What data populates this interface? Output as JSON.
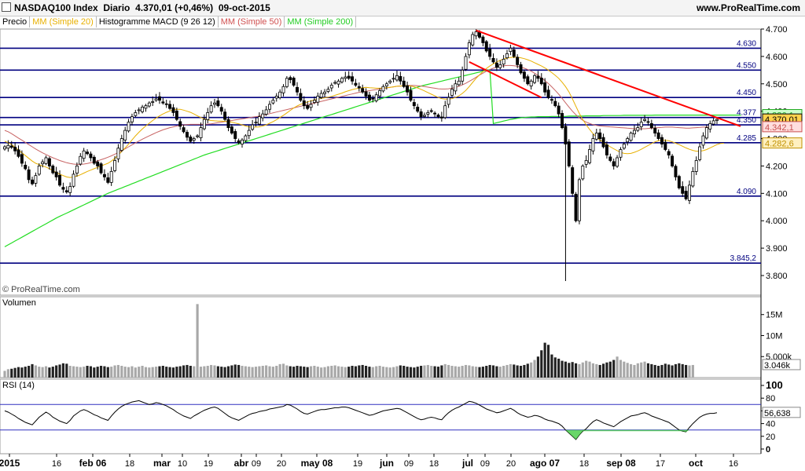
{
  "header": {
    "title": "NASDAQ100 Index",
    "period": "Diario",
    "last": "4.370,01 (+0,46%)",
    "date": "09-oct-2015",
    "site": "www.ProRealTime.com"
  },
  "legend": [
    {
      "label": "Precio",
      "color": "#000000"
    },
    {
      "label": "MM (Simple 20)",
      "color": "#e8b000"
    },
    {
      "label": "Histogramme MACD (9 26 12)",
      "color": "#000000"
    },
    {
      "label": "MM (Simple 50)",
      "color": "#d05050"
    },
    {
      "label": "MM (Simple 200)",
      "color": "#22cc22"
    }
  ],
  "watermark": "© ProRealTime.com",
  "volume_label": "Volumen",
  "rsi_label": "RSI (14)",
  "colors": {
    "up": "#ffffff",
    "down": "#000000",
    "ma20": "#e8b000",
    "ma50": "#c86464",
    "ma200": "#22dd22",
    "trend": "#ff0000",
    "level": "#000080"
  },
  "chart_data": {
    "type": "candlestick",
    "title": "NASDAQ100 Index",
    "ylim": [
      3760,
      4720
    ],
    "y_ticks": [
      "4.700",
      "4.600",
      "4.500",
      "4.400",
      "4.300",
      "4.200",
      "4.100",
      "4.000",
      "3.900",
      "3.800"
    ],
    "x_ticks": [
      "2015",
      "16",
      "feb 06",
      "18",
      "mar",
      "10",
      "19",
      "abr",
      "09",
      "20",
      "may 08",
      "19",
      "jun",
      "09",
      "18",
      "jul",
      "09",
      "20",
      "ago 07",
      "18",
      "sep 08",
      "17",
      "oct",
      "16"
    ],
    "levels": [
      {
        "label": "4.630",
        "value": 4630
      },
      {
        "label": "4.550",
        "value": 4550
      },
      {
        "label": "4.450",
        "value": 4450
      },
      {
        "label": "4.377",
        "value": 4377
      },
      {
        "label": "4.350",
        "value": 4350
      },
      {
        "label": "4.285",
        "value": 4285
      },
      {
        "label": "4.090",
        "value": 4090
      },
      {
        "label": "3.845,2",
        "value": 3845.2
      }
    ],
    "price_tags": [
      {
        "label": "4.386,1",
        "value": 4386.1,
        "bg": "#ccffcc",
        "fg": "#22aa22"
      },
      {
        "label": "4.370,01",
        "value": 4370.01,
        "bg": "#ffd24d",
        "fg": "#000000"
      },
      {
        "label": "4.342,1",
        "value": 4342.1,
        "bg": "#ffdede",
        "fg": "#c85050"
      },
      {
        "label": "4.282,6",
        "value": 4282.6,
        "bg": "#fff0c0",
        "fg": "#c09000"
      }
    ],
    "closes": [
      4270,
      4275,
      4268,
      4255,
      4235,
      4210,
      4190,
      4150,
      4135,
      4165,
      4200,
      4215,
      4230,
      4200,
      4175,
      4160,
      4130,
      4115,
      4105,
      4125,
      4170,
      4200,
      4235,
      4255,
      4245,
      4230,
      4210,
      4200,
      4175,
      4160,
      4140,
      4180,
      4220,
      4265,
      4300,
      4330,
      4360,
      4380,
      4395,
      4405,
      4415,
      4420,
      4430,
      4435,
      4445,
      4440,
      4430,
      4425,
      4410,
      4395,
      4370,
      4345,
      4325,
      4305,
      4290,
      4300,
      4310,
      4340,
      4370,
      4395,
      4420,
      4430,
      4420,
      4400,
      4370,
      4340,
      4320,
      4300,
      4285,
      4295,
      4310,
      4330,
      4350,
      4360,
      4380,
      4390,
      4405,
      4425,
      4440,
      4455,
      4470,
      4490,
      4520,
      4515,
      4495,
      4470,
      4440,
      4420,
      4410,
      4425,
      4440,
      4455,
      4465,
      4470,
      4480,
      4495,
      4505,
      4510,
      4520,
      4525,
      4520,
      4510,
      4495,
      4485,
      4470,
      4455,
      4440,
      4445,
      4460,
      4475,
      4490,
      4500,
      4510,
      4520,
      4530,
      4510,
      4490,
      4470,
      4440,
      4420,
      4400,
      4380,
      4385,
      4395,
      4400,
      4390,
      4380,
      4375,
      4420,
      4450,
      4480,
      4500,
      4510,
      4550,
      4600,
      4650,
      4680,
      4690,
      4670,
      4650,
      4620,
      4600,
      4580,
      4560,
      4570,
      4590,
      4610,
      4630,
      4600,
      4570,
      4540,
      4520,
      4500,
      4510,
      4530,
      4520,
      4500,
      4470,
      4450,
      4440,
      4420,
      4390,
      4340,
      4280,
      4200,
      4100,
      4000,
      4150,
      4200,
      4220,
      4260,
      4300,
      4320,
      4300,
      4270,
      4240,
      4220,
      4200,
      4230,
      4260,
      4280,
      4300,
      4320,
      4330,
      4340,
      4360,
      4370,
      4360,
      4340,
      4320,
      4300,
      4280,
      4260,
      4240,
      4200,
      4160,
      4120,
      4100,
      4080,
      4130,
      4180,
      4220,
      4270,
      4310,
      4340,
      4355,
      4365,
      4370
    ],
    "ma20": [
      4290,
      4285,
      4278,
      4268,
      4258,
      4248,
      4238,
      4228,
      4218,
      4210,
      4205,
      4200,
      4196,
      4190,
      4183,
      4176,
      4170,
      4165,
      4160,
      4158,
      4160,
      4163,
      4168,
      4174,
      4180,
      4185,
      4190,
      4195,
      4200,
      4205,
      4210,
      4218,
      4228,
      4240,
      4253,
      4266,
      4280,
      4295,
      4310,
      4323,
      4335,
      4346,
      4356,
      4366,
      4375,
      4383,
      4390,
      4396,
      4401,
      4405,
      4407,
      4407,
      4404,
      4400,
      4396,
      4390,
      4383,
      4377,
      4372,
      4368,
      4366,
      4365,
      4364,
      4364,
      4363,
      4362,
      4360,
      4357,
      4354,
      4350,
      4346,
      4343,
      4342,
      4342,
      4343,
      4346,
      4350,
      4356,
      4362,
      4369,
      4377,
      4385,
      4394,
      4403,
      4412,
      4419,
      4425,
      4430,
      4434,
      4438,
      4441,
      4444,
      4447,
      4449,
      4451,
      4454,
      4458,
      4462,
      4466,
      4471,
      4475,
      4479,
      4482,
      4484,
      4486,
      4487,
      4486,
      4485,
      4484,
      4484,
      4485,
      4486,
      4487,
      4489,
      4491,
      4492,
      4493,
      4493,
      4492,
      4489,
      4485,
      4480,
      4474,
      4468,
      4462,
      4456,
      4450,
      4446,
      4444,
      4444,
      4446,
      4450,
      4456,
      4465,
      4476,
      4490,
      4505,
      4520,
      4533,
      4545,
      4556,
      4565,
      4573,
      4580,
      4586,
      4590,
      4594,
      4596,
      4597,
      4597,
      4595,
      4592,
      4588,
      4583,
      4577,
      4571,
      4565,
      4558,
      4550,
      4541,
      4531,
      4520,
      4506,
      4490,
      4470,
      4445,
      4418,
      4392,
      4370,
      4350,
      4333,
      4318,
      4305,
      4295,
      4286,
      4278,
      4270,
      4263,
      4256,
      4250,
      4246,
      4245,
      4246,
      4250,
      4255,
      4261,
      4268,
      4275,
      4282,
      4288,
      4292,
      4294,
      4294,
      4292,
      4288,
      4283,
      4278,
      4272,
      4266,
      4261,
      4257,
      4254,
      4254,
      4256,
      4260,
      4266,
      4272,
      4278,
      4282,
      4283
    ],
    "ma50": [
      4330,
      4325,
      4318,
      4310,
      4302,
      4294,
      4286,
      4278,
      4270,
      4262,
      4255,
      4248,
      4242,
      4236,
      4230,
      4225,
      4220,
      4216,
      4212,
      4209,
      4207,
      4206,
      4206,
      4207,
      4209,
      4212,
      4215,
      4219,
      4223,
      4227,
      4232,
      4237,
      4243,
      4249,
      4256,
      4263,
      4270,
      4277,
      4284,
      4291,
      4298,
      4304,
      4310,
      4316,
      4322,
      4327,
      4332,
      4336,
      4340,
      4343,
      4346,
      4348,
      4350,
      4351,
      4352,
      4352,
      4352,
      4352,
      4352,
      4353,
      4354,
      4356,
      4358,
      4360,
      4362,
      4364,
      4366,
      4368,
      4370,
      4372,
      4374,
      4376,
      4378,
      4380,
      4382,
      4385,
      4388,
      4391,
      4394,
      4397,
      4400,
      4403,
      4406,
      4409,
      4412,
      4415,
      4418,
      4421,
      4424,
      4427,
      4430,
      4433,
      4436,
      4439,
      4442,
      4445,
      4448,
      4451,
      4454,
      4457,
      4460,
      4463,
      4466,
      4469,
      4471,
      4473,
      4475,
      4477,
      4479,
      4481,
      4483,
      4485,
      4487,
      4489,
      4491,
      4492,
      4493,
      4494,
      4494,
      4494,
      4493,
      4492,
      4490,
      4488,
      4486,
      4484,
      4482,
      4481,
      4481,
      4482,
      4484,
      4487,
      4491,
      4496,
      4502,
      4509,
      4516,
      4524,
      4532,
      4539,
      4546,
      4552,
      4557,
      4561,
      4564,
      4566,
      4567,
      4567,
      4566,
      4564,
      4561,
      4557,
      4552,
      4546,
      4539,
      4531,
      4522,
      4512,
      4501,
      4489,
      4476,
      4462,
      4447,
      4431,
      4415,
      4400,
      4387,
      4376,
      4367,
      4360,
      4355,
      4351,
      4348,
      4346,
      4345,
      4344,
      4343,
      4342,
      4341,
      4340,
      4339,
      4338,
      4337,
      4336,
      4336,
      4336,
      4336,
      4337,
      4338,
      4339,
      4340,
      4341,
      4342,
      4342,
      4342,
      4341,
      4340,
      4339,
      4338,
      4338,
      4339,
      4340,
      4341,
      4342,
      4342,
      4342
    ],
    "ma200": [
      3905,
      3912,
      3919,
      3926,
      3933,
      3940,
      3947,
      3954,
      3961,
      3968,
      3975,
      3982,
      3989,
      3996,
      4003,
      4010,
      4016,
      4022,
      4028,
      4034,
      4040,
      4046,
      4052,
      4058,
      4064,
      4070,
      4076,
      4082,
      4088,
      4094,
      4100,
      4105,
      4110,
      4115,
      4120,
      4125,
      4130,
      4135,
      4140,
      4145,
      4150,
      4155,
      4160,
      4165,
      4170,
      4175,
      4180,
      4185,
      4190,
      4195,
      4200,
      4205,
      4210,
      4215,
      4220,
      4225,
      4230,
      4235,
      4240,
      4244,
      4248,
      4252,
      4256,
      4260,
      4264,
      4268,
      4272,
      4276,
      4280,
      4284,
      4288,
      4292,
      4296,
      4300,
      4304,
      4308,
      4312,
      4316,
      4320,
      4324,
      4328,
      4332,
      4336,
      4340,
      4344,
      4348,
      4352,
      4356,
      4360,
      4364,
      4368,
      4372,
      4376,
      4380,
      4384,
      4388,
      4392,
      4396,
      4400,
      4404,
      4408,
      4412,
      4416,
      4420,
      4424,
      4428,
      4432,
      4436,
      4440,
      4444,
      4448,
      4452,
      4456,
      4460,
      4464,
      4468,
      4472,
      4476,
      4480,
      4484,
      4488,
      4492,
      4495,
      4498,
      4501,
      4504,
      4507,
      4510,
      4513,
      4516,
      4519,
      4522,
      4525,
      4528,
      4531,
      4534,
      4537,
      4540,
      4543,
      4546,
      4549,
      4552,
      4355,
      4358,
      4361,
      4364,
      4367,
      4370,
      4372,
      4374,
      4376,
      4377,
      4378,
      4379,
      4379,
      4380,
      4380,
      4380,
      4380,
      4381,
      4381,
      4381,
      4381,
      4381,
      4382,
      4382,
      4382,
      4382,
      4382,
      4383,
      4383,
      4383,
      4383,
      4383,
      4384,
      4384,
      4384,
      4384,
      4384,
      4384,
      4385,
      4385,
      4385,
      4385,
      4385,
      4385,
      4385,
      4385,
      4385,
      4386,
      4386,
      4386,
      4386,
      4386,
      4386,
      4386,
      4386,
      4386,
      4386,
      4386,
      4386,
      4386,
      4386,
      4386,
      4386,
      4386,
      4386,
      4386,
      4386,
      4386,
      4386,
      4386,
      4386,
      4386,
      4386
    ],
    "volume_ticks": [
      "15M",
      "10M",
      "5.000k"
    ],
    "volume_last": "3.046k",
    "volume": [
      1.6,
      2.0,
      2.1,
      2.3,
      2.5,
      2.4,
      2.6,
      2.8,
      3.2,
      2.9,
      2.6,
      2.5,
      2.7,
      2.4,
      2.6,
      2.9,
      3.1,
      3.4,
      3.3,
      2.8,
      2.7,
      2.6,
      2.5,
      2.6,
      2.8,
      2.7,
      2.4,
      2.6,
      2.8,
      2.7,
      2.5,
      2.6,
      2.9,
      3.0,
      2.8,
      2.6,
      2.5,
      2.7,
      2.4,
      2.6,
      2.8,
      2.5,
      2.4,
      2.5,
      2.6,
      2.7,
      2.8,
      2.6,
      2.5,
      2.4,
      2.6,
      2.7,
      2.9,
      3.0,
      2.8,
      2.7,
      17.5,
      2.6,
      2.7,
      2.8,
      3.0,
      2.9,
      2.7,
      2.6,
      2.5,
      2.7,
      2.9,
      3.1,
      3.0,
      2.8,
      2.7,
      2.6,
      2.5,
      2.6,
      2.7,
      2.8,
      2.9,
      2.7,
      2.6,
      2.8,
      3.2,
      3.3,
      2.9,
      2.7,
      2.6,
      2.8,
      2.7,
      2.6,
      2.5,
      2.7,
      2.8,
      2.6,
      2.4,
      2.5,
      2.7,
      2.8,
      2.9,
      2.7,
      2.6,
      2.5,
      2.6,
      2.8,
      2.7,
      2.9,
      3.0,
      2.8,
      2.6,
      2.5,
      2.7,
      2.8,
      2.6,
      2.5,
      2.4,
      2.5,
      2.7,
      2.9,
      2.8,
      2.6,
      2.5,
      2.4,
      2.6,
      2.8,
      2.9,
      3.0,
      2.8,
      2.7,
      2.6,
      2.9,
      3.2,
      3.0,
      2.8,
      2.7,
      2.6,
      2.8,
      3.0,
      2.9,
      2.7,
      2.6,
      2.5,
      2.6,
      2.8,
      3.0,
      2.9,
      2.7,
      2.6,
      2.8,
      3.0,
      3.2,
      3.1,
      2.9,
      2.8,
      3.0,
      3.3,
      3.6,
      4.2,
      5.0,
      6.5,
      8.3,
      7.8,
      5.5,
      4.8,
      4.5,
      4.0,
      3.8,
      3.5,
      3.7,
      3.4,
      3.2,
      3.6,
      4.0,
      3.8,
      3.4,
      3.2,
      3.0,
      3.3,
      3.6,
      3.8,
      4.2,
      5.0,
      4.2,
      3.8,
      3.5,
      3.2,
      3.0,
      3.4,
      3.6,
      3.8,
      3.4,
      3.2,
      3.0,
      2.8,
      3.0,
      3.3,
      3.1,
      2.9,
      3.2,
      3.4,
      3.2,
      3.0,
      2.9,
      3.0
    ],
    "rsi_ticks": [
      "100",
      "80",
      "60",
      "40",
      "20",
      "0"
    ],
    "rsi_last": "56,638",
    "rsi_bands": [
      70,
      30
    ],
    "rsi": [
      60,
      58,
      55,
      52,
      48,
      45,
      42,
      40,
      38,
      44,
      50,
      54,
      58,
      55,
      50,
      47,
      44,
      42,
      40,
      45,
      52,
      56,
      60,
      62,
      60,
      57,
      54,
      52,
      49,
      47,
      45,
      52,
      58,
      63,
      67,
      70,
      72,
      74,
      75,
      76,
      74,
      72,
      70,
      71,
      73,
      72,
      70,
      68,
      65,
      62,
      58,
      55,
      52,
      50,
      48,
      52,
      55,
      58,
      61,
      63,
      65,
      66,
      64,
      60,
      56,
      52,
      49,
      47,
      45,
      48,
      51,
      54,
      56,
      57,
      59,
      60,
      61,
      63,
      64,
      65,
      66,
      67,
      70,
      69,
      66,
      63,
      59,
      56,
      55,
      57,
      59,
      61,
      62,
      62,
      63,
      64,
      65,
      65,
      66,
      66,
      65,
      63,
      61,
      59,
      57,
      55,
      53,
      54,
      56,
      58,
      60,
      61,
      62,
      63,
      64,
      63,
      60,
      57,
      54,
      51,
      48,
      46,
      47,
      49,
      50,
      49,
      47,
      46,
      52,
      57,
      61,
      64,
      66,
      69,
      72,
      75,
      74,
      72,
      69,
      66,
      63,
      61,
      59,
      57,
      58,
      60,
      62,
      64,
      61,
      57,
      54,
      52,
      50,
      51,
      53,
      52,
      50,
      47,
      45,
      44,
      42,
      40,
      36,
      30,
      25,
      20,
      15,
      22,
      28,
      32,
      38,
      43,
      46,
      44,
      41,
      39,
      37,
      35,
      39,
      43,
      46,
      49,
      52,
      53,
      54,
      56,
      57,
      55,
      52,
      50,
      48,
      46,
      44,
      42,
      38,
      34,
      30,
      28,
      27,
      34,
      40,
      45,
      50,
      53,
      55,
      56,
      56,
      57
    ]
  }
}
